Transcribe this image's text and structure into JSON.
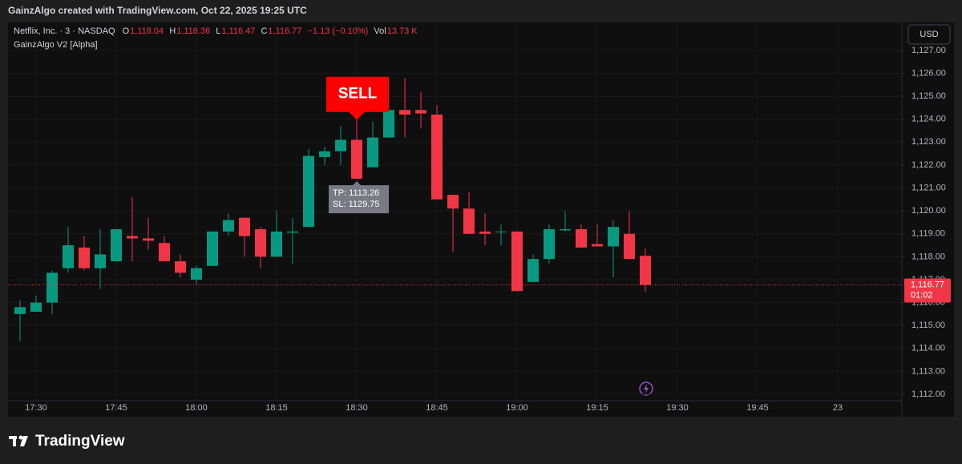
{
  "chart_data": {
    "type": "candlestick",
    "title": "GainzAlgo created with TradingView.com, Oct 22, 2025 19:25 UTC",
    "legend": {
      "symbol": "Netflix, Inc. · 3 · NASDAQ",
      "o_key": "O",
      "o": "1,118.04",
      "h_key": "H",
      "h": "1,118.36",
      "l_key": "L",
      "l": "1,116.47",
      "c_key": "C",
      "c": "1,116.77",
      "change": "−1.13 (−0.10%)",
      "vol_key": "Vol",
      "vol": "13.73 K"
    },
    "indicator": "GainzAlgo V2 [Alpha]",
    "currency": "USD",
    "brand": "TradingView",
    "up_color": "#089981",
    "down_color": "#f23645",
    "categories": [
      null,
      "17:30",
      null,
      null,
      null,
      null,
      "17:45",
      null,
      null,
      null,
      null,
      "18:00",
      null,
      null,
      null,
      null,
      "18:15",
      null,
      null,
      null,
      null,
      "18:30",
      null,
      null,
      null,
      null,
      "18:45",
      null,
      null,
      null,
      null,
      "19:00",
      null,
      null,
      null,
      null,
      "19:15",
      null,
      null,
      null,
      null,
      "19:30",
      null,
      null,
      null,
      null,
      "19:45",
      null,
      null,
      null,
      null,
      "23"
    ],
    "open": [
      1115.5,
      1115.6,
      1116.0,
      1117.5,
      1118.4,
      1117.5,
      1117.8,
      1118.9,
      1118.8,
      1118.6,
      1117.8,
      1117.0,
      1117.6,
      1119.1,
      1119.7,
      1119.2,
      1118.0,
      1119.05,
      1119.3,
      1122.35,
      1122.6,
      1123.1,
      1121.9,
      1123.2,
      1124.4,
      1124.4,
      1124.2,
      1120.7,
      1120.1,
      1119.1,
      1119.1,
      1119.1,
      1116.9,
      1117.9,
      1119.15,
      1119.2,
      1118.55,
      1118.45,
      1119.0,
      1118.04,
      null,
      null,
      null,
      null,
      null,
      null,
      null,
      null,
      null,
      null,
      null,
      null
    ],
    "high": [
      1116.1,
      1116.3,
      1117.4,
      1119.3,
      1118.9,
      1119.2,
      1119.2,
      1120.6,
      1119.7,
      1118.9,
      1118.1,
      1117.6,
      1119.1,
      1119.9,
      1119.7,
      1119.3,
      1120.0,
      1119.7,
      1122.7,
      1122.8,
      1123.7,
      1124.0,
      1123.9,
      1124.4,
      1125.8,
      1125.2,
      1124.6,
      1120.7,
      1120.8,
      1119.9,
      1119.4,
      1119.1,
      1118.1,
      1119.4,
      1120.0,
      1119.4,
      1119.4,
      1119.6,
      1120.0,
      1118.36,
      null,
      null,
      null,
      null,
      null,
      null,
      null,
      null,
      null,
      null,
      null,
      null
    ],
    "low": [
      1114.3,
      1115.6,
      1115.5,
      1117.3,
      1117.4,
      1116.6,
      1117.8,
      1117.8,
      1118.3,
      1117.8,
      1117.1,
      1116.8,
      1117.6,
      1118.9,
      1118.0,
      1117.5,
      1118.0,
      1117.7,
      1119.3,
      1122.0,
      1122.0,
      1121.4,
      1121.9,
      1123.2,
      1123.2,
      1123.6,
      1120.5,
      1118.2,
      1119.0,
      1118.5,
      1118.5,
      1116.5,
      1116.9,
      1117.7,
      1119.1,
      1118.4,
      1118.45,
      1117.1,
      1117.9,
      1116.47,
      null,
      null,
      null,
      null,
      null,
      null,
      null,
      null,
      null,
      null,
      null,
      null
    ],
    "close": [
      1115.8,
      1116.0,
      1117.3,
      1118.5,
      1117.5,
      1118.1,
      1119.2,
      1118.8,
      1118.7,
      1117.8,
      1117.3,
      1117.5,
      1119.1,
      1119.6,
      1118.9,
      1118.0,
      1119.1,
      1119.1,
      1122.4,
      1122.6,
      1123.1,
      1121.4,
      1123.2,
      1124.4,
      1124.2,
      1124.25,
      1120.5,
      1120.1,
      1119.0,
      1119.0,
      1119.1,
      1116.5,
      1117.9,
      1119.2,
      1119.2,
      1118.4,
      1118.45,
      1119.3,
      1117.9,
      1116.77,
      null,
      null,
      null,
      null,
      null,
      null,
      null,
      null,
      null,
      null,
      null,
      null
    ],
    "ylim": [
      1111.72,
      1128.22
    ],
    "yticks": [
      {
        "value": 1112,
        "label": "1,112.00"
      },
      {
        "value": 1113,
        "label": "1,113.00"
      },
      {
        "value": 1114,
        "label": "1,114.00"
      },
      {
        "value": 1115,
        "label": "1,115.00"
      },
      {
        "value": 1116,
        "label": "1,116.00"
      },
      {
        "value": 1117,
        "label": "1,117.00"
      },
      {
        "value": 1118,
        "label": "1,118.00"
      },
      {
        "value": 1119,
        "label": "1,119.00"
      },
      {
        "value": 1120,
        "label": "1,120.00"
      },
      {
        "value": 1121,
        "label": "1,121.00"
      },
      {
        "value": 1122,
        "label": "1,122.00"
      },
      {
        "value": 1123,
        "label": "1,123.00"
      },
      {
        "value": 1124,
        "label": "1,124.00"
      },
      {
        "value": 1125,
        "label": "1,125.00"
      },
      {
        "value": 1126,
        "label": "1,126.00"
      },
      {
        "value": 1127,
        "label": "1,127.00"
      }
    ],
    "grid": true,
    "last_price": {
      "value": 1116.77,
      "label": "1,116.77"
    },
    "countdown": "01:02",
    "signal": {
      "index": 21,
      "label": "SELL",
      "tp": "TP: 1113.26",
      "sl": "SL: 1129.75"
    }
  }
}
